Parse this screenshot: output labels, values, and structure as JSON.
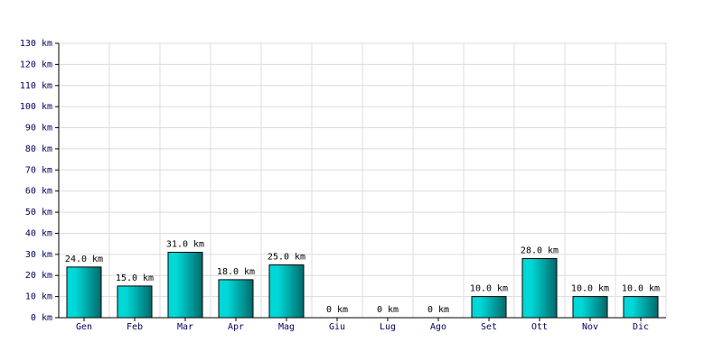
{
  "chart_data": {
    "type": "bar",
    "categories": [
      "Gen",
      "Feb",
      "Mar",
      "Apr",
      "Mag",
      "Giu",
      "Lug",
      "Ago",
      "Set",
      "Ott",
      "Nov",
      "Dic"
    ],
    "values": [
      24,
      15,
      31,
      18,
      25,
      0,
      0,
      0,
      10,
      28,
      10,
      10
    ],
    "value_labels": [
      "24.0 km",
      "15.0 km",
      "31.0 km",
      "18.0 km",
      "25.0 km",
      "0 km",
      "0 km",
      "0 km",
      "10.0 km",
      "28.0 km",
      "10.0 km",
      "10.0 km"
    ],
    "color": "#00d8d8",
    "ylim": [
      0,
      130
    ],
    "yticks": [
      {
        "value": 0,
        "label": "0 km"
      },
      {
        "value": 10,
        "label": "10 km"
      },
      {
        "value": 20,
        "label": "20 km"
      },
      {
        "value": 30,
        "label": "30 km"
      },
      {
        "value": 40,
        "label": "40 km"
      },
      {
        "value": 50,
        "label": "50 km"
      },
      {
        "value": 60,
        "label": "60 km"
      },
      {
        "value": 70,
        "label": "70 km"
      },
      {
        "value": 80,
        "label": "80 km"
      },
      {
        "value": 90,
        "label": "90 km"
      },
      {
        "value": 100,
        "label": "100 km"
      },
      {
        "value": 110,
        "label": "110 km"
      },
      {
        "value": 120,
        "label": "120 km"
      },
      {
        "value": 130,
        "label": "130 km"
      }
    ],
    "grid": true
  }
}
